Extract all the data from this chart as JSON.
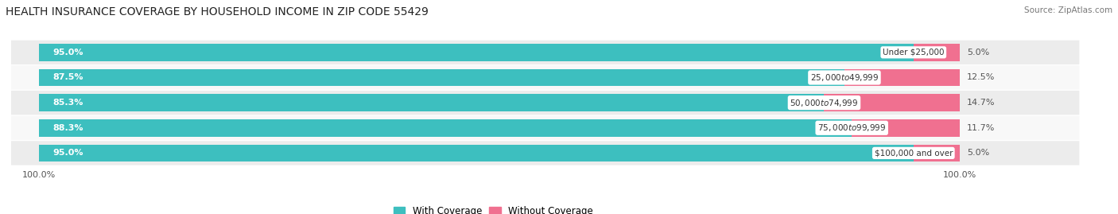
{
  "title": "HEALTH INSURANCE COVERAGE BY HOUSEHOLD INCOME IN ZIP CODE 55429",
  "source": "Source: ZipAtlas.com",
  "categories": [
    "Under $25,000",
    "$25,000 to $49,999",
    "$50,000 to $74,999",
    "$75,000 to $99,999",
    "$100,000 and over"
  ],
  "with_coverage": [
    95.0,
    87.5,
    85.3,
    88.3,
    95.0
  ],
  "without_coverage": [
    5.0,
    12.5,
    14.7,
    11.7,
    5.0
  ],
  "color_coverage": "#3DBFBF",
  "color_without": "#F07090",
  "row_color_odd": "#ececec",
  "row_color_even": "#f8f8f8",
  "title_fontsize": 10,
  "bar_label_fontsize": 8,
  "cat_label_fontsize": 7.5,
  "legend_fontsize": 8.5,
  "axis_label_fontsize": 8,
  "figsize": [
    14.06,
    2.69
  ],
  "dpi": 100
}
